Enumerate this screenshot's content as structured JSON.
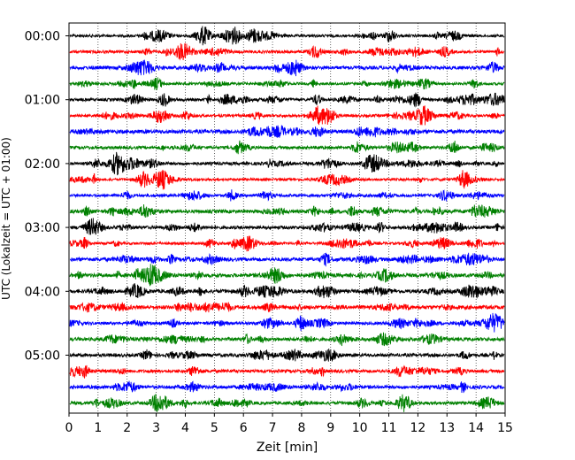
{
  "chart_data": {
    "type": "line",
    "title": "",
    "xlabel": "Zeit  [min]",
    "ylabel": "UTC (Lokalzeit = UTC + 01:00)",
    "xlim": [
      0,
      15
    ],
    "x_ticks": [
      0,
      1,
      2,
      3,
      4,
      5,
      6,
      7,
      8,
      9,
      10,
      11,
      12,
      13,
      14,
      15
    ],
    "y_tick_labels": [
      "00:00",
      "01:00",
      "02:00",
      "03:00",
      "04:00",
      "05:00"
    ],
    "trace_interval_min": 15,
    "trace_count": 24,
    "trace_colors": [
      "#000000",
      "#ff0000",
      "#0000ff",
      "#008000"
    ],
    "vertical_gridlines": "dotted",
    "grid": true
  }
}
